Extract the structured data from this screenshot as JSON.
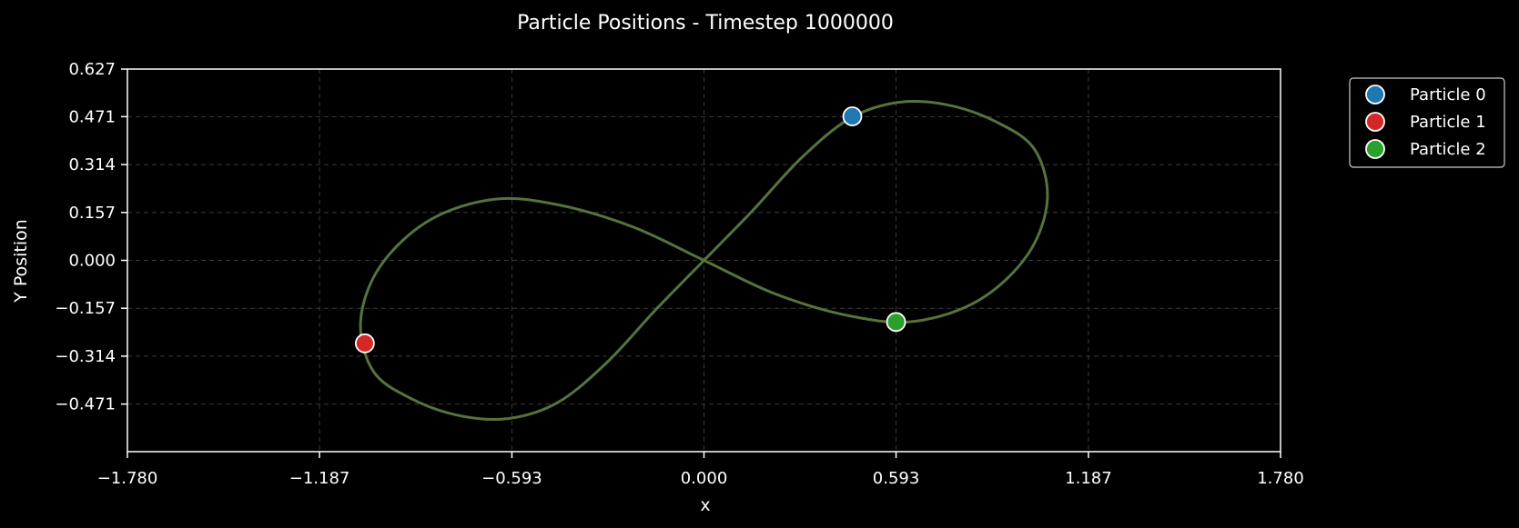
{
  "chart_data": {
    "type": "scatter",
    "title": "Particle Positions - Timestep 1000000",
    "xlabel": "x",
    "ylabel": "Y Position",
    "xlim": [
      -1.78,
      1.78
    ],
    "ylim": [
      -0.627,
      0.627
    ],
    "xticks": [
      "−1.780",
      "−1.187",
      "−0.593",
      "0.000",
      "0.593",
      "1.187",
      "1.780"
    ],
    "xtick_values": [
      -1.78,
      -1.187,
      -0.593,
      0.0,
      0.593,
      1.187,
      1.78
    ],
    "yticks": [
      "0.627",
      "0.471",
      "0.314",
      "0.157",
      "0.000",
      "−0.157",
      "−0.314",
      "−0.471"
    ],
    "ytick_values": [
      0.627,
      0.471,
      0.314,
      0.157,
      0.0,
      -0.157,
      -0.314,
      -0.471
    ],
    "grid": true,
    "legend_position": "outside-top-right",
    "trajectory_color": "#55733d",
    "series": [
      {
        "name": "Particle 0",
        "color": "#1f77b4",
        "x": [
          0.458
        ],
        "y": [
          0.472
        ]
      },
      {
        "name": "Particle 1",
        "color": "#d62728",
        "x": [
          -1.047
        ],
        "y": [
          -0.272
        ]
      },
      {
        "name": "Particle 2",
        "color": "#2ca02c",
        "x": [
          0.593
        ],
        "y": [
          -0.202
        ]
      }
    ]
  }
}
